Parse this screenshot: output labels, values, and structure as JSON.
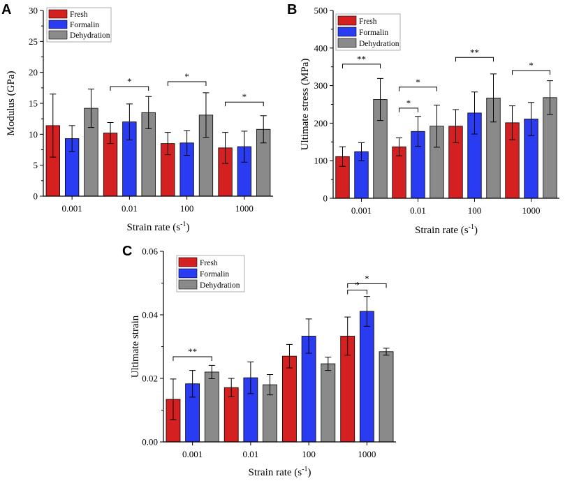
{
  "colors": {
    "fresh": "#d42020",
    "formalin": "#2a3cf2",
    "dehydration": "#8a8a8a"
  },
  "chart_data": [
    {
      "panel": "A",
      "type": "bar",
      "xlabel": "Strain rate (s",
      "xlabel_sup": "-1",
      "xlabel_end": ")",
      "ylabel": "Modulus (GPa)",
      "ylim": [
        0,
        30
      ],
      "yticks": [
        0,
        5,
        10,
        15,
        20,
        25,
        30
      ],
      "ytick_labels": [
        "0",
        "5",
        "10",
        "15",
        "20",
        "25",
        "30"
      ],
      "categories": [
        "0.001",
        "0.01",
        "100",
        "1000"
      ],
      "series": [
        {
          "name": "Fresh",
          "color": "#d42020",
          "values": [
            11.4,
            10.2,
            8.5,
            7.8
          ],
          "errors": [
            5.1,
            1.7,
            1.8,
            2.5
          ]
        },
        {
          "name": "Formalin",
          "color": "#2a3cf2",
          "values": [
            9.3,
            12.0,
            8.6,
            8.0
          ],
          "errors": [
            2.1,
            2.9,
            2.0,
            2.5
          ]
        },
        {
          "name": "Dehydration",
          "color": "#8a8a8a",
          "values": [
            14.2,
            13.5,
            13.1,
            10.8
          ],
          "errors": [
            3.1,
            2.6,
            3.6,
            2.2
          ]
        }
      ],
      "significance": [
        {
          "category": 1,
          "from": 0,
          "to": 2,
          "y": 17.7,
          "label": "*"
        },
        {
          "category": 2,
          "from": 0,
          "to": 2,
          "y": 18.5,
          "label": "*"
        },
        {
          "category": 3,
          "from": 0,
          "to": 2,
          "y": 15.2,
          "label": "*"
        }
      ]
    },
    {
      "panel": "B",
      "type": "bar",
      "xlabel": "Strain rate (s",
      "xlabel_sup": "-1",
      "xlabel_end": ")",
      "ylabel": "Ultimate stress (MPa)",
      "ylim": [
        0,
        500
      ],
      "yticks": [
        0,
        100,
        200,
        300,
        400,
        500
      ],
      "ytick_labels": [
        "0",
        "100",
        "200",
        "300",
        "400",
        "500"
      ],
      "categories": [
        "0.001",
        "0.01",
        "100",
        "1000"
      ],
      "series": [
        {
          "name": "Fresh",
          "color": "#d42020",
          "values": [
            111,
            137,
            192,
            201
          ],
          "errors": [
            26,
            24,
            44,
            45
          ]
        },
        {
          "name": "Formalin",
          "color": "#2a3cf2",
          "values": [
            124,
            178,
            227,
            211
          ],
          "errors": [
            24,
            40,
            56,
            44
          ]
        },
        {
          "name": "Dehydration",
          "color": "#8a8a8a",
          "values": [
            263,
            192,
            267,
            268
          ],
          "errors": [
            56,
            56,
            64,
            45
          ]
        }
      ],
      "significance": [
        {
          "category": 0,
          "from": 0,
          "to": 2,
          "y": 357,
          "label": "**"
        },
        {
          "category": 1,
          "from": 0,
          "to": 1,
          "y": 240,
          "label": "*"
        },
        {
          "category": 1,
          "from": 0,
          "to": 2,
          "y": 296,
          "label": "*"
        },
        {
          "category": 2,
          "from": 0,
          "to": 2,
          "y": 375,
          "label": "**"
        },
        {
          "category": 3,
          "from": 0,
          "to": 2,
          "y": 340,
          "label": "*"
        }
      ]
    },
    {
      "panel": "C",
      "type": "bar",
      "xlabel": "Strain rate (s",
      "xlabel_sup": "-1",
      "xlabel_end": ")",
      "ylabel": "Ultimate strain",
      "ylim": [
        0,
        0.06
      ],
      "yticks": [
        0,
        0.02,
        0.04,
        0.06
      ],
      "ytick_labels": [
        "0.00",
        "0.02",
        "0.04",
        "0.06"
      ],
      "categories": [
        "0.001",
        "0.01",
        "100",
        "1000"
      ],
      "series": [
        {
          "name": "Fresh",
          "color": "#d42020",
          "values": [
            0.0134,
            0.0171,
            0.027,
            0.0333
          ],
          "errors": [
            0.0064,
            0.0029,
            0.0037,
            0.006
          ]
        },
        {
          "name": "Formalin",
          "color": "#2a3cf2",
          "values": [
            0.0183,
            0.0202,
            0.0333,
            0.0411
          ],
          "errors": [
            0.0042,
            0.005,
            0.0054,
            0.0047
          ]
        },
        {
          "name": "Dehydration",
          "color": "#8a8a8a",
          "values": [
            0.022,
            0.018,
            0.0246,
            0.0284
          ],
          "errors": [
            0.0021,
            0.0032,
            0.0021,
            0.0011
          ]
        }
      ],
      "significance": [
        {
          "category": 0,
          "from": 0,
          "to": 2,
          "y": 0.0268,
          "label": "**"
        },
        {
          "category": 3,
          "from": 0,
          "to": 1,
          "y": 0.0478,
          "label": "*"
        },
        {
          "category": 3,
          "from": 0,
          "to": 2,
          "y": 0.0498,
          "label": "*"
        }
      ]
    }
  ]
}
